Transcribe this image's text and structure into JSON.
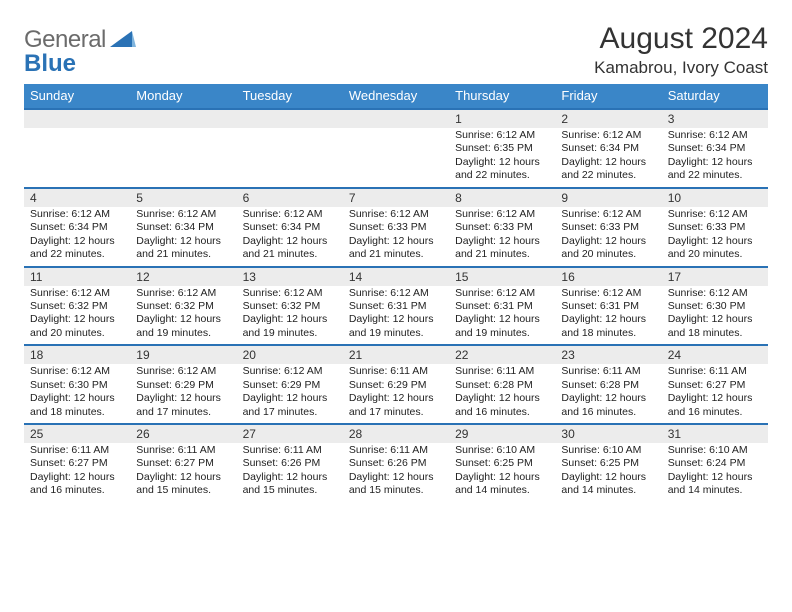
{
  "brand": {
    "text1": "General",
    "text2": "Blue"
  },
  "title": "August 2024",
  "location": "Kamabrou, Ivory Coast",
  "colors": {
    "header_bg": "#3a86c8",
    "header_fg": "#ffffff",
    "row_divider": "#2a72b5",
    "daynum_bg": "#ececec",
    "page_bg": "#ffffff",
    "text": "#222222",
    "logo_gray": "#6b6b6b",
    "logo_blue": "#2a72b5"
  },
  "weekdays": [
    "Sunday",
    "Monday",
    "Tuesday",
    "Wednesday",
    "Thursday",
    "Friday",
    "Saturday"
  ],
  "weeks": [
    [
      null,
      null,
      null,
      null,
      {
        "n": "1",
        "sunrise": "6:12 AM",
        "sunset": "6:35 PM",
        "daylight": "12 hours and 22 minutes."
      },
      {
        "n": "2",
        "sunrise": "6:12 AM",
        "sunset": "6:34 PM",
        "daylight": "12 hours and 22 minutes."
      },
      {
        "n": "3",
        "sunrise": "6:12 AM",
        "sunset": "6:34 PM",
        "daylight": "12 hours and 22 minutes."
      }
    ],
    [
      {
        "n": "4",
        "sunrise": "6:12 AM",
        "sunset": "6:34 PM",
        "daylight": "12 hours and 22 minutes."
      },
      {
        "n": "5",
        "sunrise": "6:12 AM",
        "sunset": "6:34 PM",
        "daylight": "12 hours and 21 minutes."
      },
      {
        "n": "6",
        "sunrise": "6:12 AM",
        "sunset": "6:34 PM",
        "daylight": "12 hours and 21 minutes."
      },
      {
        "n": "7",
        "sunrise": "6:12 AM",
        "sunset": "6:33 PM",
        "daylight": "12 hours and 21 minutes."
      },
      {
        "n": "8",
        "sunrise": "6:12 AM",
        "sunset": "6:33 PM",
        "daylight": "12 hours and 21 minutes."
      },
      {
        "n": "9",
        "sunrise": "6:12 AM",
        "sunset": "6:33 PM",
        "daylight": "12 hours and 20 minutes."
      },
      {
        "n": "10",
        "sunrise": "6:12 AM",
        "sunset": "6:33 PM",
        "daylight": "12 hours and 20 minutes."
      }
    ],
    [
      {
        "n": "11",
        "sunrise": "6:12 AM",
        "sunset": "6:32 PM",
        "daylight": "12 hours and 20 minutes."
      },
      {
        "n": "12",
        "sunrise": "6:12 AM",
        "sunset": "6:32 PM",
        "daylight": "12 hours and 19 minutes."
      },
      {
        "n": "13",
        "sunrise": "6:12 AM",
        "sunset": "6:32 PM",
        "daylight": "12 hours and 19 minutes."
      },
      {
        "n": "14",
        "sunrise": "6:12 AM",
        "sunset": "6:31 PM",
        "daylight": "12 hours and 19 minutes."
      },
      {
        "n": "15",
        "sunrise": "6:12 AM",
        "sunset": "6:31 PM",
        "daylight": "12 hours and 19 minutes."
      },
      {
        "n": "16",
        "sunrise": "6:12 AM",
        "sunset": "6:31 PM",
        "daylight": "12 hours and 18 minutes."
      },
      {
        "n": "17",
        "sunrise": "6:12 AM",
        "sunset": "6:30 PM",
        "daylight": "12 hours and 18 minutes."
      }
    ],
    [
      {
        "n": "18",
        "sunrise": "6:12 AM",
        "sunset": "6:30 PM",
        "daylight": "12 hours and 18 minutes."
      },
      {
        "n": "19",
        "sunrise": "6:12 AM",
        "sunset": "6:29 PM",
        "daylight": "12 hours and 17 minutes."
      },
      {
        "n": "20",
        "sunrise": "6:12 AM",
        "sunset": "6:29 PM",
        "daylight": "12 hours and 17 minutes."
      },
      {
        "n": "21",
        "sunrise": "6:11 AM",
        "sunset": "6:29 PM",
        "daylight": "12 hours and 17 minutes."
      },
      {
        "n": "22",
        "sunrise": "6:11 AM",
        "sunset": "6:28 PM",
        "daylight": "12 hours and 16 minutes."
      },
      {
        "n": "23",
        "sunrise": "6:11 AM",
        "sunset": "6:28 PM",
        "daylight": "12 hours and 16 minutes."
      },
      {
        "n": "24",
        "sunrise": "6:11 AM",
        "sunset": "6:27 PM",
        "daylight": "12 hours and 16 minutes."
      }
    ],
    [
      {
        "n": "25",
        "sunrise": "6:11 AM",
        "sunset": "6:27 PM",
        "daylight": "12 hours and 16 minutes."
      },
      {
        "n": "26",
        "sunrise": "6:11 AM",
        "sunset": "6:27 PM",
        "daylight": "12 hours and 15 minutes."
      },
      {
        "n": "27",
        "sunrise": "6:11 AM",
        "sunset": "6:26 PM",
        "daylight": "12 hours and 15 minutes."
      },
      {
        "n": "28",
        "sunrise": "6:11 AM",
        "sunset": "6:26 PM",
        "daylight": "12 hours and 15 minutes."
      },
      {
        "n": "29",
        "sunrise": "6:10 AM",
        "sunset": "6:25 PM",
        "daylight": "12 hours and 14 minutes."
      },
      {
        "n": "30",
        "sunrise": "6:10 AM",
        "sunset": "6:25 PM",
        "daylight": "12 hours and 14 minutes."
      },
      {
        "n": "31",
        "sunrise": "6:10 AM",
        "sunset": "6:24 PM",
        "daylight": "12 hours and 14 minutes."
      }
    ]
  ],
  "labels": {
    "sunrise": "Sunrise:",
    "sunset": "Sunset:",
    "daylight": "Daylight:"
  }
}
